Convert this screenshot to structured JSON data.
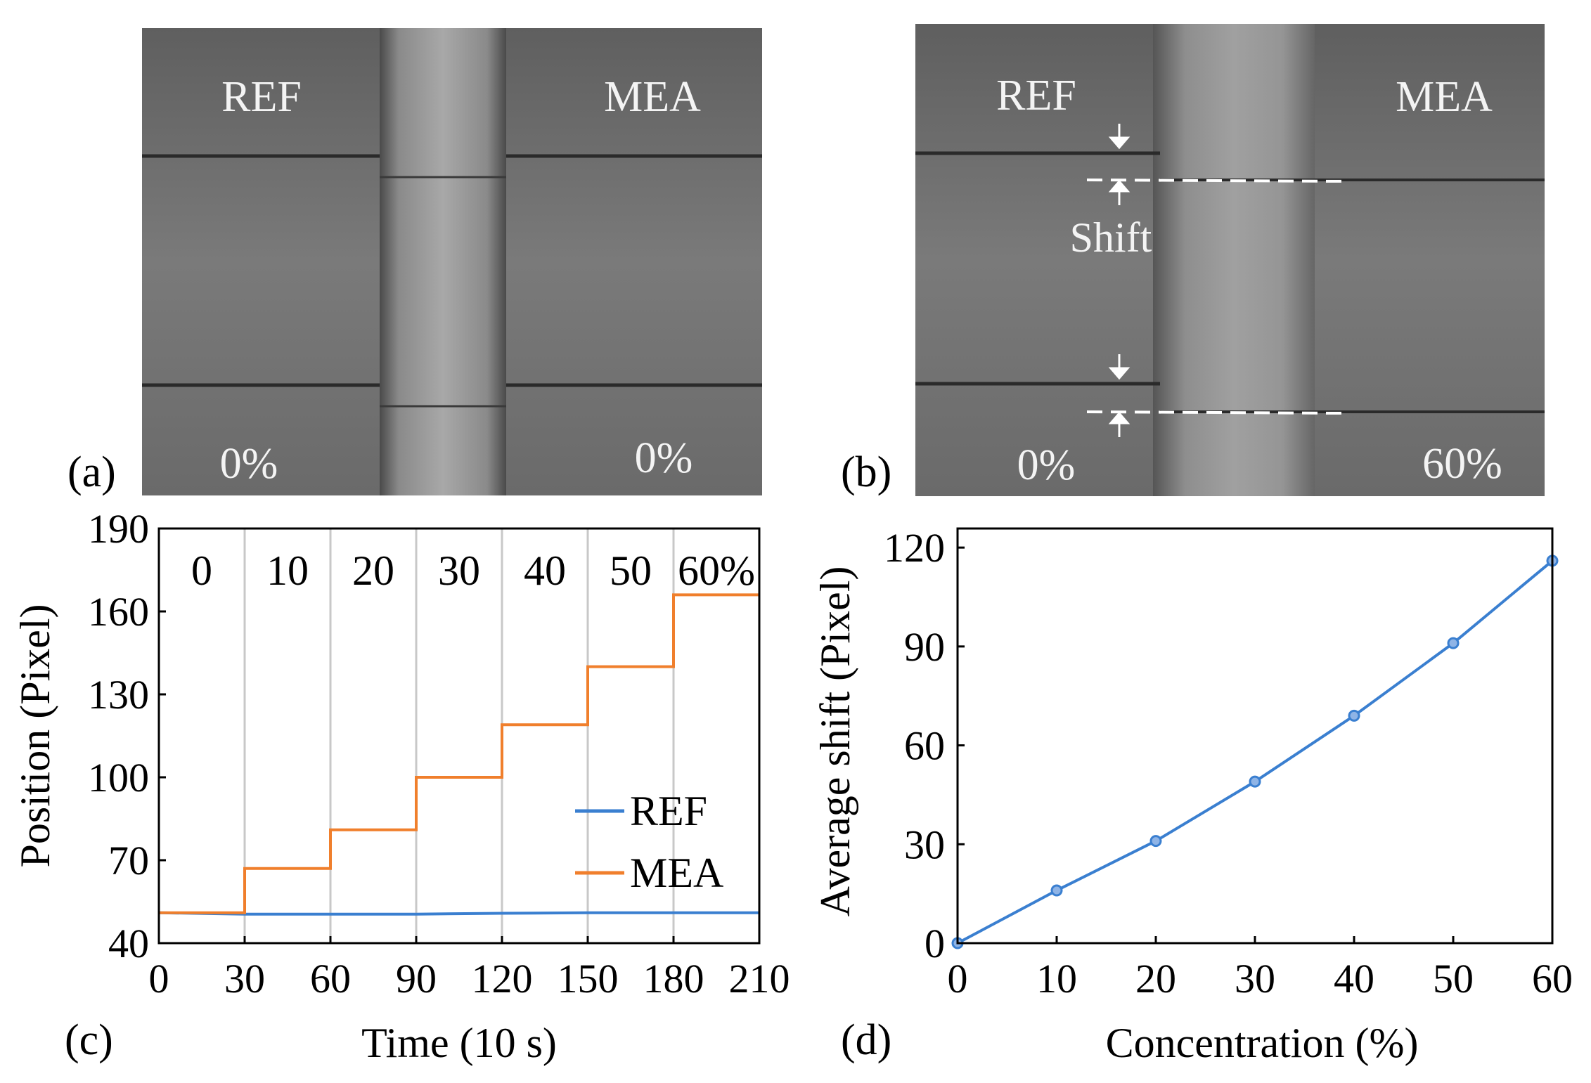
{
  "panel_a": {
    "label": "(a)",
    "left_label": "REF",
    "right_label": "MEA",
    "left_conc": "0%",
    "right_conc": "0%"
  },
  "panel_b": {
    "label": "(b)",
    "left_label": "REF",
    "right_label": "MEA",
    "left_conc": "0%",
    "right_conc": "60%",
    "shift_label": "Shift"
  },
  "chart_data": [
    {
      "panel": "(c)",
      "type": "line",
      "xlabel": "Time (10 s)",
      "ylabel": "Position (Pixel)",
      "xlim": [
        0,
        210
      ],
      "ylim": [
        40,
        190
      ],
      "xticks": [
        0,
        30,
        60,
        90,
        120,
        150,
        180,
        210
      ],
      "yticks": [
        40,
        70,
        100,
        130,
        160,
        190
      ],
      "vlines": [
        30,
        60,
        90,
        120,
        150,
        180
      ],
      "segment_labels": [
        "0",
        "10",
        "20",
        "30",
        "40",
        "50",
        "60%"
      ],
      "series": [
        {
          "name": "REF",
          "color": "#3a7fd0",
          "x": [
            0,
            30,
            60,
            90,
            120,
            150,
            180,
            210
          ],
          "y": [
            51,
            50.5,
            50.5,
            50.5,
            50.8,
            51,
            51,
            51
          ]
        },
        {
          "name": "MEA",
          "color": "#f07f2c",
          "x": [
            0,
            30,
            30,
            60,
            60,
            90,
            90,
            120,
            120,
            150,
            150,
            180,
            180,
            210
          ],
          "y": [
            51,
            51,
            67,
            67,
            81,
            81,
            100,
            100,
            119,
            119,
            140,
            140,
            166,
            166
          ]
        }
      ],
      "legend": "right-center"
    },
    {
      "panel": "(d)",
      "type": "line",
      "xlabel": "Concentration (%)",
      "ylabel": "Average shift (Pixel)",
      "xlim": [
        0,
        60
      ],
      "ylim": [
        0,
        120
      ],
      "xticks": [
        0,
        10,
        20,
        30,
        40,
        50,
        60
      ],
      "yticks": [
        0,
        30,
        60,
        90,
        120
      ],
      "series": [
        {
          "name": "Average shift",
          "color": "#3a7fd0",
          "x": [
            0,
            10,
            20,
            30,
            40,
            50,
            60
          ],
          "y": [
            0,
            16,
            31,
            49,
            69,
            91,
            116
          ]
        }
      ]
    }
  ]
}
